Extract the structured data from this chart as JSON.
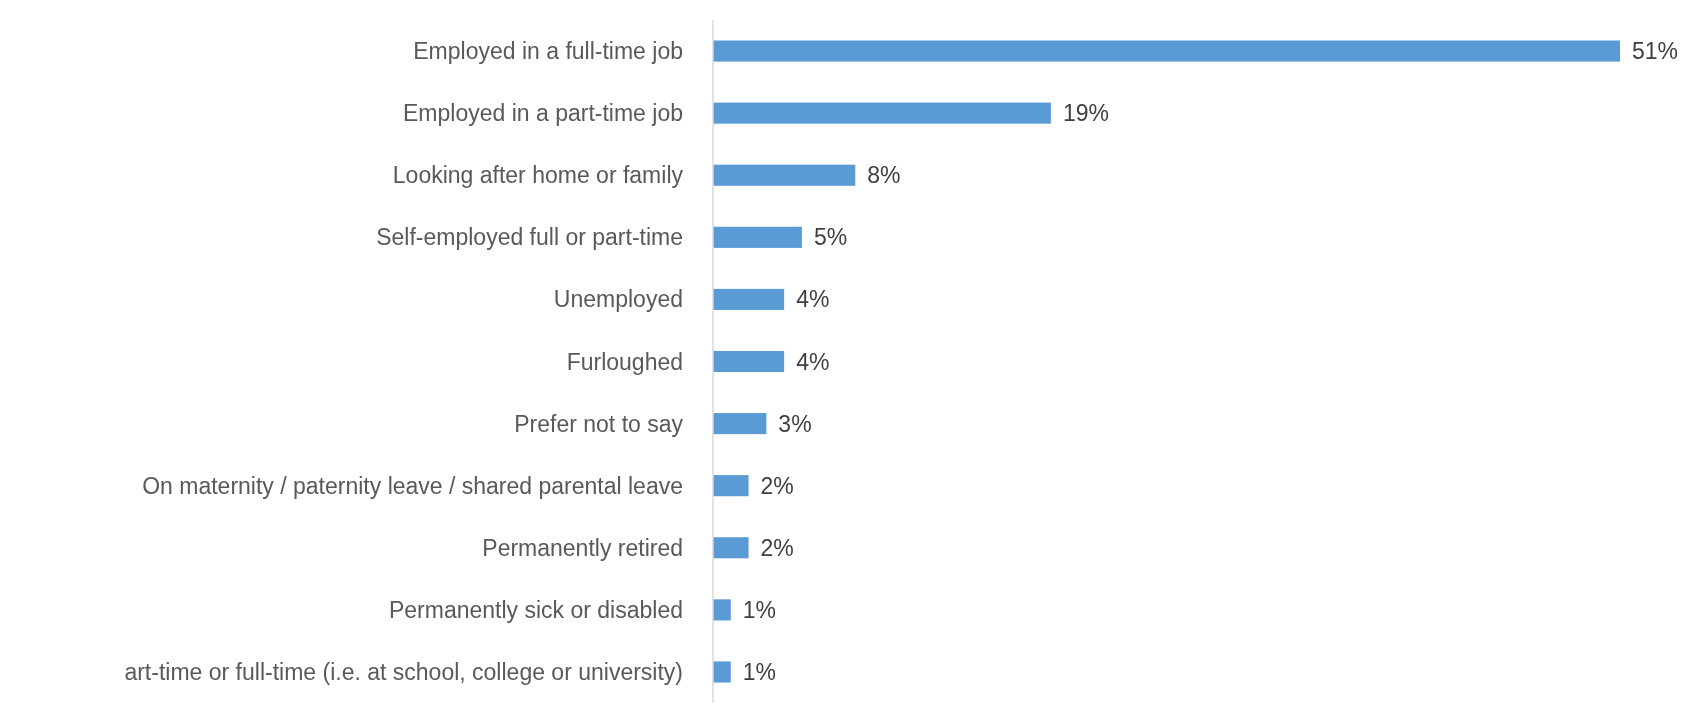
{
  "chart_data": {
    "type": "bar",
    "orientation": "horizontal",
    "categories": [
      "Employed in a full-time job",
      "Employed in a part-time job",
      "Looking after home or family",
      "Self-employed full or part-time",
      "Unemployed",
      "Furloughed",
      "Prefer not to say",
      "On maternity / paternity leave / shared parental leave",
      "Permanently retired",
      "Permanently sick or disabled",
      "art-time or full-time (i.e. at school, college or university)"
    ],
    "values": [
      51,
      19,
      8,
      5,
      4,
      4,
      3,
      2,
      2,
      1,
      1
    ],
    "value_labels": [
      "51%",
      "19%",
      "8%",
      "5%",
      "4%",
      "4%",
      "3%",
      "2%",
      "2%",
      "1%",
      "1%"
    ],
    "color": "#5b9bd5"
  }
}
